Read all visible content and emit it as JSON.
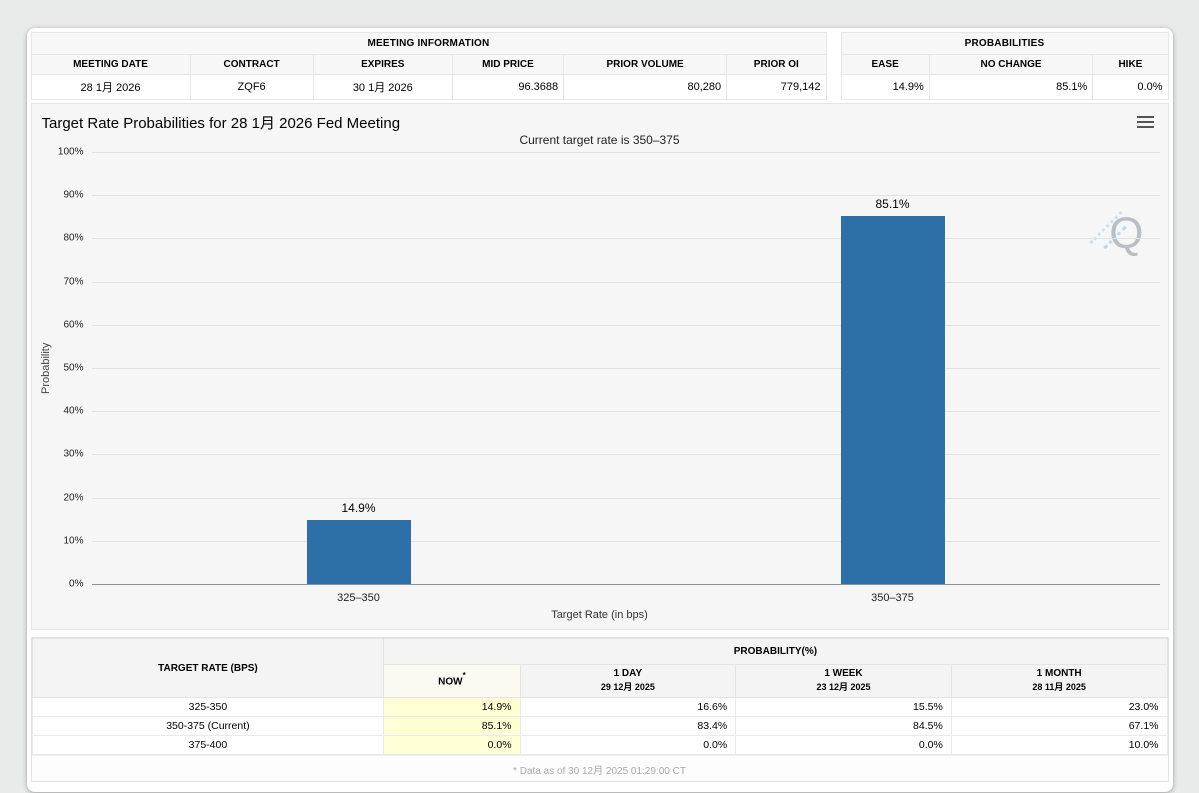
{
  "meeting_info": {
    "title": "MEETING INFORMATION",
    "columns": [
      "MEETING DATE",
      "CONTRACT",
      "EXPIRES",
      "MID PRICE",
      "PRIOR VOLUME",
      "PRIOR OI"
    ],
    "values": [
      "28 1月 2026",
      "ZQF6",
      "30 1月 2026",
      "96.3688",
      "80,280",
      "779,142"
    ]
  },
  "probabilities": {
    "title": "PROBABILITIES",
    "columns": [
      "EASE",
      "NO CHANGE",
      "HIKE"
    ],
    "values": [
      "14.9%",
      "85.1%",
      "0.0%"
    ]
  },
  "chart": {
    "title": "Target Rate Probabilities for 28 1月 2026 Fed Meeting",
    "subtitle": "Current target rate is 350–375",
    "watermark_letter": "Q"
  },
  "chart_data": {
    "type": "bar",
    "title": "Target Rate Probabilities for 28 1月 2026 Fed Meeting",
    "subtitle": "Current target rate is 350–375",
    "categories": [
      "325–350",
      "350–375"
    ],
    "values": [
      14.9,
      85.1
    ],
    "bar_labels": [
      "14.9%",
      "85.1%"
    ],
    "xlabel": "Target Rate (in bps)",
    "ylabel": "Probability",
    "ylim": [
      0,
      100
    ],
    "ytick_step": 10,
    "ytick_suffix": "%",
    "grid": true,
    "legend": "none",
    "bar_color": "#2d70a8",
    "bar_centers_pct": [
      25,
      75
    ]
  },
  "table": {
    "rate_header": "TARGET RATE (BPS)",
    "group_header": "PROBABILITY(%)",
    "now_header": "NOW",
    "now_sup": "*",
    "col_headers": [
      {
        "label": "1 DAY",
        "date": "29 12月 2025"
      },
      {
        "label": "1 WEEK",
        "date": "23 12月 2025"
      },
      {
        "label": "1 MONTH",
        "date": "28 11月 2025"
      }
    ],
    "rows": [
      {
        "rate": "325-350",
        "now": "14.9%",
        "day": "16.6%",
        "week": "15.5%",
        "month": "23.0%"
      },
      {
        "rate": "350-375 (Current)",
        "now": "85.1%",
        "day": "83.4%",
        "week": "84.5%",
        "month": "67.1%"
      },
      {
        "rate": "375-400",
        "now": "0.0%",
        "day": "0.0%",
        "week": "0.0%",
        "month": "10.0%"
      }
    ],
    "footnote": "* Data as of 30 12月 2025 01:29:00 CT"
  },
  "colors": {
    "bar": "#2d70a8",
    "now_column_highlight": "#ffffd6",
    "accent_strip": "#2b7fd0"
  }
}
